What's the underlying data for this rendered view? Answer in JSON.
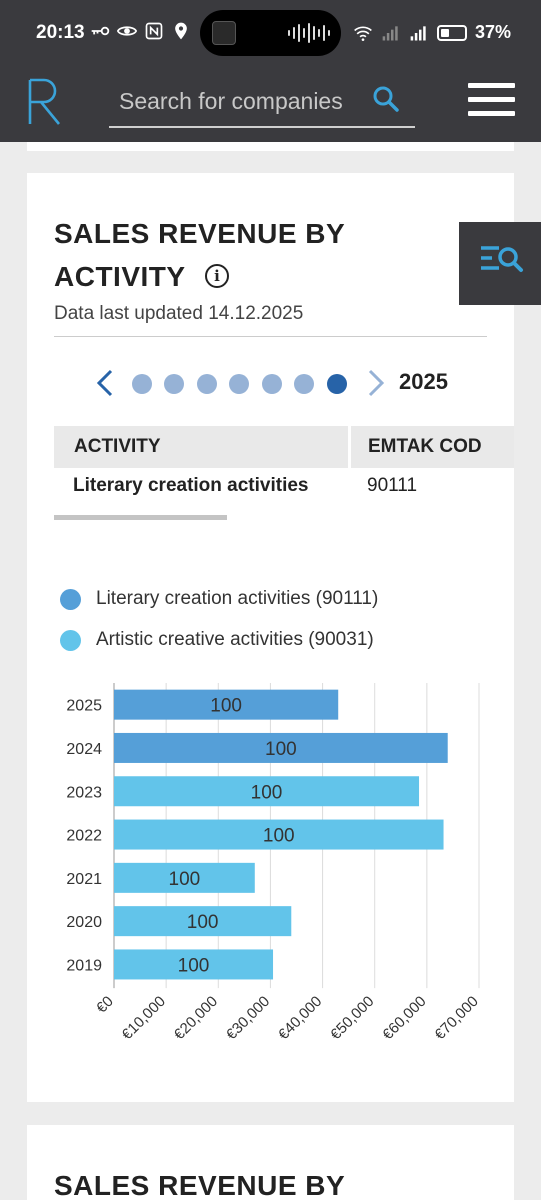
{
  "status_bar": {
    "time": "20:13",
    "battery": "37%",
    "left_icons": [
      "key-icon",
      "eye-icon",
      "nfc-icon",
      "location-icon"
    ],
    "right_icons": [
      "wifi-icon",
      "signal-icon",
      "signal-icon",
      "battery-icon"
    ]
  },
  "header": {
    "search_placeholder": "Search for companies",
    "colors": {
      "bar": "#3a3a3e",
      "accent": "#3aa3d9"
    }
  },
  "section": {
    "title_line1": "SALES REVENUE BY",
    "title_line2": "ACTIVITY",
    "updated": "Data last updated 14.12.2025",
    "pager": {
      "dots": 7,
      "active_index": 6,
      "year": "2025"
    },
    "table": {
      "headers": [
        "ACTIVITY",
        "EMTAK COD"
      ],
      "rows": [
        {
          "activity": "Literary creation activities",
          "code": "90111"
        }
      ]
    },
    "legend": [
      {
        "label": "Literary creation activities (90111)",
        "color": "#559fd8"
      },
      {
        "label": "Artistic creative activities (90031)",
        "color": "#62c4ea"
      }
    ]
  },
  "chart_data": {
    "type": "bar",
    "orientation": "horizontal",
    "categories": [
      "2025",
      "2024",
      "2023",
      "2022",
      "2021",
      "2020",
      "2019"
    ],
    "values": [
      43000,
      64000,
      58500,
      63200,
      27000,
      34000,
      30500
    ],
    "bar_labels": [
      "100",
      "100",
      "100",
      "100",
      "100",
      "100",
      "100"
    ],
    "bar_series": [
      "Literary creation activities (90111)",
      "Literary creation activities (90111)",
      "Artistic creative activities (90031)",
      "Artistic creative activities (90031)",
      "Artistic creative activities (90031)",
      "Artistic creative activities (90031)",
      "Artistic creative activities (90031)"
    ],
    "xlim": [
      0,
      70000
    ],
    "xticks": [
      "€0",
      "€10,000",
      "€20,000",
      "€30,000",
      "€40,000",
      "€50,000",
      "€60,000",
      "€70,000"
    ],
    "grid": true
  },
  "next_section": {
    "title": "SALES REVENUE BY"
  }
}
